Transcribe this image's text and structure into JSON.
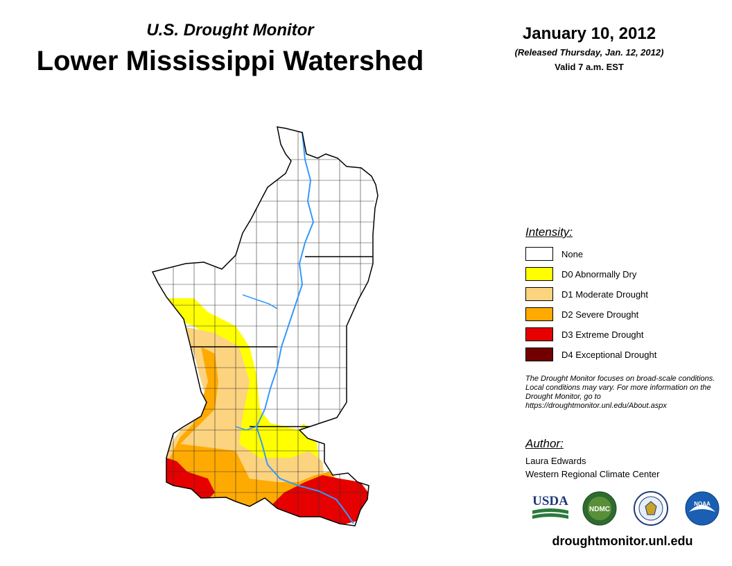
{
  "header": {
    "subtitle": "U.S. Drought Monitor",
    "title": "Lower Mississippi Watershed",
    "date": "January 10, 2012",
    "released": "(Released Thursday, Jan. 12, 2012)",
    "valid": "Valid 7 a.m. EST"
  },
  "legend": {
    "heading": "Intensity:",
    "items": [
      {
        "label": "None",
        "color": "#ffffff"
      },
      {
        "label": "D0 Abnormally Dry",
        "color": "#ffff00"
      },
      {
        "label": "D1 Moderate Drought",
        "color": "#fcd37f"
      },
      {
        "label": "D2 Severe Drought",
        "color": "#ffaa00"
      },
      {
        "label": "D3 Extreme Drought",
        "color": "#e60000"
      },
      {
        "label": "D4 Exceptional Drought",
        "color": "#730000"
      }
    ]
  },
  "note": "The Drought Monitor focuses on broad-scale conditions. Local conditions may vary. For more information on the Drought Monitor, go to https://droughtmonitor.unl.edu/About.aspx",
  "author": {
    "heading": "Author:",
    "name": "Laura Edwards",
    "org": "Western Regional Climate Center"
  },
  "logos": {
    "usda": "USDA",
    "ndmc": "NDMC",
    "noaa": "NOAA"
  },
  "footer_url": "droughtmonitor.unl.edu",
  "map_colors": {
    "river": "#3399ff",
    "outline": "#000000"
  }
}
